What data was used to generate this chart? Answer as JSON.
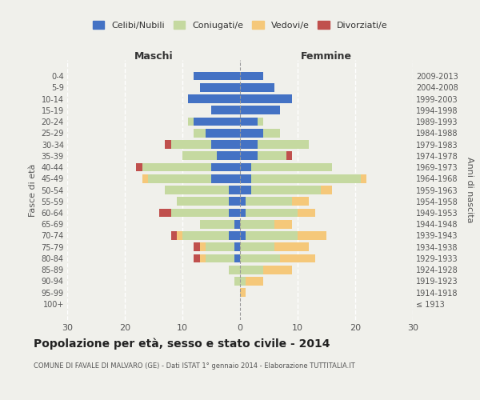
{
  "age_groups": [
    "100+",
    "95-99",
    "90-94",
    "85-89",
    "80-84",
    "75-79",
    "70-74",
    "65-69",
    "60-64",
    "55-59",
    "50-54",
    "45-49",
    "40-44",
    "35-39",
    "30-34",
    "25-29",
    "20-24",
    "15-19",
    "10-14",
    "5-9",
    "0-4"
  ],
  "birth_years": [
    "≤ 1913",
    "1914-1918",
    "1919-1923",
    "1924-1928",
    "1929-1933",
    "1934-1938",
    "1939-1943",
    "1944-1948",
    "1949-1953",
    "1954-1958",
    "1959-1963",
    "1964-1968",
    "1969-1973",
    "1974-1978",
    "1979-1983",
    "1984-1988",
    "1989-1993",
    "1994-1998",
    "1999-2003",
    "2004-2008",
    "2009-2013"
  ],
  "males": {
    "celibi": [
      0,
      0,
      0,
      0,
      1,
      1,
      2,
      1,
      2,
      2,
      2,
      5,
      5,
      4,
      5,
      6,
      8,
      5,
      9,
      7,
      8
    ],
    "coniugati": [
      0,
      0,
      1,
      2,
      5,
      5,
      8,
      6,
      10,
      9,
      11,
      11,
      12,
      6,
      7,
      2,
      1,
      0,
      0,
      0,
      0
    ],
    "vedovi": [
      0,
      0,
      0,
      0,
      1,
      1,
      1,
      0,
      0,
      0,
      0,
      1,
      0,
      0,
      0,
      0,
      0,
      0,
      0,
      0,
      0
    ],
    "divorziati": [
      0,
      0,
      0,
      0,
      1,
      1,
      1,
      0,
      2,
      0,
      0,
      0,
      1,
      0,
      1,
      0,
      0,
      0,
      0,
      0,
      0
    ]
  },
  "females": {
    "nubili": [
      0,
      0,
      0,
      0,
      0,
      0,
      1,
      0,
      1,
      1,
      2,
      2,
      2,
      3,
      3,
      4,
      3,
      7,
      9,
      6,
      4
    ],
    "coniugate": [
      0,
      0,
      1,
      4,
      7,
      6,
      9,
      6,
      9,
      8,
      12,
      19,
      14,
      5,
      9,
      3,
      1,
      0,
      0,
      0,
      0
    ],
    "vedove": [
      0,
      1,
      3,
      5,
      6,
      6,
      5,
      3,
      3,
      3,
      2,
      1,
      0,
      0,
      0,
      0,
      0,
      0,
      0,
      0,
      0
    ],
    "divorziate": [
      0,
      0,
      0,
      0,
      0,
      0,
      0,
      0,
      0,
      0,
      0,
      0,
      0,
      1,
      0,
      0,
      0,
      0,
      0,
      0,
      0
    ]
  },
  "colors": {
    "celibi": "#4472C4",
    "coniugati": "#C5D9A0",
    "vedovi": "#F5C87A",
    "divorziati": "#C0504D"
  },
  "title": "Popolazione per età, sesso e stato civile - 2014",
  "subtitle": "COMUNE DI FAVALE DI MALVARO (GE) - Dati ISTAT 1° gennaio 2014 - Elaborazione TUTTITALIA.IT",
  "xlabel_left": "Maschi",
  "xlabel_right": "Femmine",
  "ylabel_left": "Fasce di età",
  "ylabel_right": "Anni di nascita",
  "legend_labels": [
    "Celibi/Nubili",
    "Coniugati/e",
    "Vedovi/e",
    "Divorziati/e"
  ],
  "xlim": 30,
  "background_color": "#f0f0eb"
}
